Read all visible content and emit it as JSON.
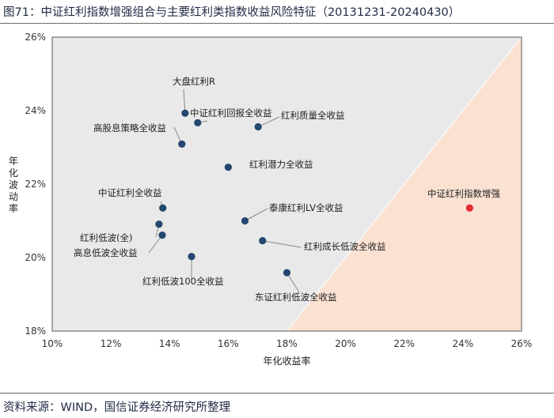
{
  "figure": {
    "title": "图71：中证红利指数增强组合与主要红利类指数收益风险特征（20131231-20240430）",
    "source": "资料来源：WIND，国信证券经济研究所整理"
  },
  "chart_data": {
    "type": "scatter",
    "title": "",
    "xlabel": "年化收益率",
    "ylabel": "年化波动率",
    "xlim": [
      0.1,
      0.26
    ],
    "ylim": [
      0.18,
      0.26
    ],
    "xticks": [
      0.1,
      0.12,
      0.14,
      0.16,
      0.18,
      0.2,
      0.22,
      0.24,
      0.26
    ],
    "yticks": [
      0.18,
      0.2,
      0.22,
      0.24,
      0.26
    ],
    "xtick_labels": [
      "10%",
      "12%",
      "14%",
      "16%",
      "18%",
      "20%",
      "22%",
      "24%",
      "26%"
    ],
    "ytick_labels": [
      "18%",
      "20%",
      "22%",
      "24%",
      "26%"
    ],
    "grid": false,
    "regions": [
      {
        "name": "",
        "color": "#e9e9e9",
        "rule": "above line from (0.18,0.18) to (0.26,0.26)"
      },
      {
        "name": "",
        "color": "#fbe1d2",
        "rule": "below line from (0.18,0.18) to (0.26,0.26)"
      }
    ],
    "colors": {
      "point": "#23476f",
      "highlight": "#e52b2b",
      "leader": "#8a8a8a",
      "frame": "#555555"
    },
    "points": [
      {
        "label": "大盘红利R",
        "x": 0.1453,
        "y": 0.2393,
        "highlight": false
      },
      {
        "label": "中证红利回报全收益",
        "x": 0.1496,
        "y": 0.2367,
        "highlight": false
      },
      {
        "label": "高股息策略全收益",
        "x": 0.1442,
        "y": 0.2309,
        "highlight": false
      },
      {
        "label": "红利质量全收益",
        "x": 0.1702,
        "y": 0.2356,
        "highlight": false
      },
      {
        "label": "红利潜力全收益",
        "x": 0.16,
        "y": 0.2246,
        "highlight": false
      },
      {
        "label": "中证红利全收益",
        "x": 0.1377,
        "y": 0.2135,
        "highlight": false
      },
      {
        "label": "红利低波(全)",
        "x": 0.1364,
        "y": 0.2091,
        "highlight": false
      },
      {
        "label": "高息低波全收益",
        "x": 0.1375,
        "y": 0.2061,
        "highlight": false
      },
      {
        "label": "红利低波100全收益",
        "x": 0.1475,
        "y": 0.2003,
        "highlight": false
      },
      {
        "label": "泰康红利LV全收益",
        "x": 0.1657,
        "y": 0.21,
        "highlight": false
      },
      {
        "label": "红利成长低波全收益",
        "x": 0.1717,
        "y": 0.2046,
        "highlight": false
      },
      {
        "label": "东证红利低波全收益",
        "x": 0.18,
        "y": 0.1959,
        "highlight": false
      },
      {
        "label": "中证红利指数增强",
        "x": 0.2423,
        "y": 0.2135,
        "highlight": true
      }
    ]
  }
}
